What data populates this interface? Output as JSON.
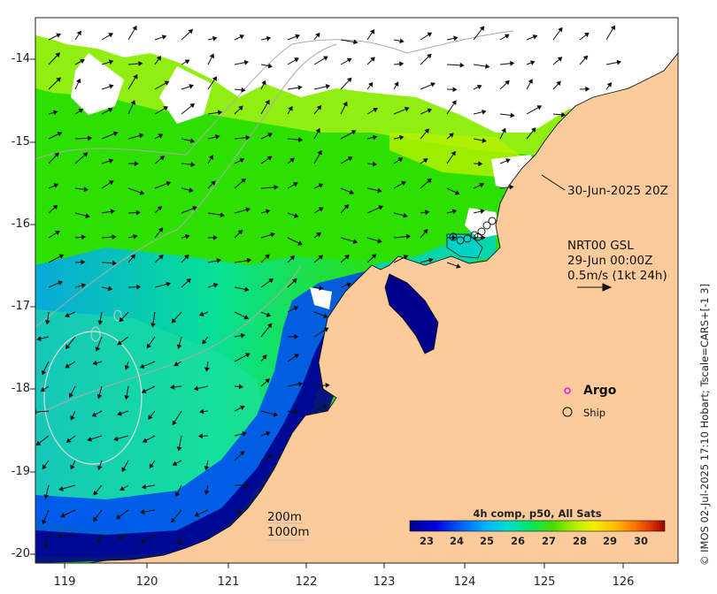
{
  "map": {
    "x_axis_ticks": [
      "119",
      "120",
      "121",
      "122",
      "123",
      "124",
      "125",
      "126"
    ],
    "y_axis_ticks": [
      "-14",
      "-15",
      "-16",
      "-17",
      "-18",
      "-19",
      "-20"
    ],
    "lon_range": [
      118.6,
      126.8
    ],
    "lat_range": [
      -20.1,
      -13.5
    ]
  },
  "annotations": {
    "last_pass": "30-Jun-2025 20Z",
    "product": "NRT00 GSL",
    "product_time": "29-Jun 00:00Z",
    "vector_scale": "0.5m/s (1kt 24h)",
    "argo_label": "Argo",
    "ship_label": "Ship",
    "isobath_200": "200m",
    "isobath_1000": "1000m",
    "credit": "© IMOS 02-Jul-2025 17:10 Hobart; Tscale=CARS+[-1 3]"
  },
  "colorbar": {
    "title": "4h comp, p50, All Sats",
    "ticks": [
      "23",
      "24",
      "25",
      "26",
      "27",
      "28",
      "29",
      "30"
    ],
    "range": [
      22.3,
      30.8
    ],
    "colors": [
      "#00008c",
      "#0000d2",
      "#0050f0",
      "#00a0ff",
      "#00d2e6",
      "#00e678",
      "#32dc00",
      "#a0f000",
      "#f0f000",
      "#ffc800",
      "#ff8200",
      "#e64100",
      "#b40000"
    ]
  },
  "colors": {
    "land": "#fccb9b",
    "argo_marker": "#e020e0",
    "ship_marker": "#111111",
    "coastline": "#111111",
    "isobath": "#aaaaaa"
  }
}
